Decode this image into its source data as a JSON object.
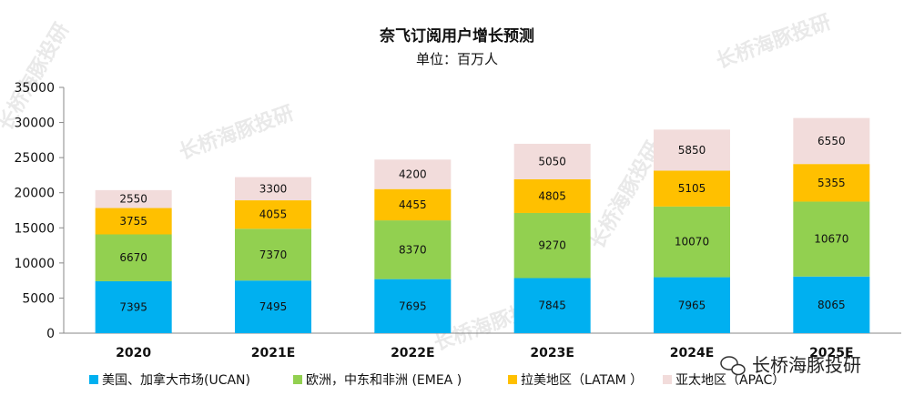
{
  "chart_data": {
    "type": "bar",
    "stacked": true,
    "title": "奈飞订阅用户增长预测",
    "subtitle": "单位：百万人",
    "categories": [
      "2020",
      "2021E",
      "2022E",
      "2023E",
      "2024E",
      "2025E"
    ],
    "ylim": [
      0,
      35000
    ],
    "yticks": [
      0,
      5000,
      10000,
      15000,
      20000,
      25000,
      30000,
      35000
    ],
    "grid": false,
    "legend_position": "bottom",
    "series": [
      {
        "name": "美国、加拿大市场(UCAN)",
        "color": "#00b0f0",
        "values": [
          7395,
          7495,
          7695,
          7845,
          7965,
          8065
        ]
      },
      {
        "name": "欧洲，中东和非洲 (EMEA )",
        "color": "#92d050",
        "values": [
          6670,
          7370,
          8370,
          9270,
          10070,
          10670
        ]
      },
      {
        "name": "拉美地区（LATAM ）",
        "color": "#ffc000",
        "values": [
          3755,
          4055,
          4455,
          4805,
          5105,
          5355
        ]
      },
      {
        "name": "亚太地区（APAC）",
        "color": "#f2dcdb",
        "values": [
          2550,
          3300,
          4200,
          5050,
          5850,
          6550
        ]
      }
    ]
  },
  "watermark": {
    "text": "长桥海豚投研",
    "logo_text": "长桥海豚投研",
    "logo_icon": "wechat-icon"
  }
}
